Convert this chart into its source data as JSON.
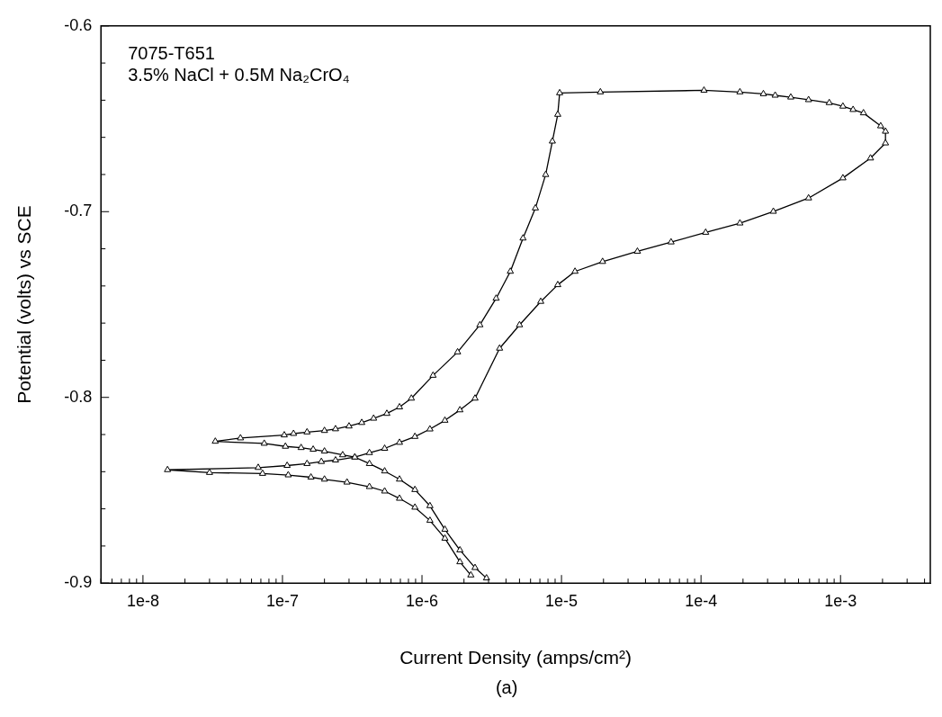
{
  "chart_data": {
    "type": "line",
    "xlabel": "Current Density (amps/cm²)",
    "ylabel": "Potential (volts) vs SCE",
    "annotations": [
      "7075-T651",
      "3.5% NaCl + 0.5M Na₂CrO₄",
      "(a)"
    ],
    "log": "x",
    "grid": false,
    "legend": false,
    "marker": "triangle",
    "line_style": "solid",
    "xlim": [
      5e-09,
      0.0044
    ],
    "ylim": [
      -0.9,
      -0.6
    ],
    "xticks": [
      {
        "value": 5e-09,
        "label": null
      },
      {
        "value": 6e-09,
        "label": null
      },
      {
        "value": 7e-09,
        "label": null
      },
      {
        "value": 8e-09,
        "label": null
      },
      {
        "value": 9e-09,
        "label": null
      },
      {
        "value": 1e-08,
        "label": "1e-8"
      },
      {
        "value": 2e-08,
        "label": null
      },
      {
        "value": 3e-08,
        "label": null
      },
      {
        "value": 4e-08,
        "label": null
      },
      {
        "value": 5e-08,
        "label": null
      },
      {
        "value": 6e-08,
        "label": null
      },
      {
        "value": 7e-08,
        "label": null
      },
      {
        "value": 8e-08,
        "label": null
      },
      {
        "value": 9e-08,
        "label": null
      },
      {
        "value": 1e-07,
        "label": "1e-7"
      },
      {
        "value": 2e-07,
        "label": null
      },
      {
        "value": 3e-07,
        "label": null
      },
      {
        "value": 4e-07,
        "label": null
      },
      {
        "value": 5e-07,
        "label": null
      },
      {
        "value": 6e-07,
        "label": null
      },
      {
        "value": 7e-07,
        "label": null
      },
      {
        "value": 8e-07,
        "label": null
      },
      {
        "value": 9e-07,
        "label": null
      },
      {
        "value": 1e-06,
        "label": "1e-6"
      },
      {
        "value": 2e-06,
        "label": null
      },
      {
        "value": 3e-06,
        "label": null
      },
      {
        "value": 4e-06,
        "label": null
      },
      {
        "value": 5e-06,
        "label": null
      },
      {
        "value": 6e-06,
        "label": null
      },
      {
        "value": 7e-06,
        "label": null
      },
      {
        "value": 8e-06,
        "label": null
      },
      {
        "value": 9e-06,
        "label": null
      },
      {
        "value": 1e-05,
        "label": "1e-5"
      },
      {
        "value": 2e-05,
        "label": null
      },
      {
        "value": 3e-05,
        "label": null
      },
      {
        "value": 4e-05,
        "label": null
      },
      {
        "value": 5e-05,
        "label": null
      },
      {
        "value": 6e-05,
        "label": null
      },
      {
        "value": 7e-05,
        "label": null
      },
      {
        "value": 8e-05,
        "label": null
      },
      {
        "value": 9e-05,
        "label": null
      },
      {
        "value": 0.0001,
        "label": "1e-4"
      },
      {
        "value": 0.0002,
        "label": null
      },
      {
        "value": 0.0003,
        "label": null
      },
      {
        "value": 0.0004,
        "label": null
      },
      {
        "value": 0.0005,
        "label": null
      },
      {
        "value": 0.0006,
        "label": null
      },
      {
        "value": 0.0007,
        "label": null
      },
      {
        "value": 0.0008,
        "label": null
      },
      {
        "value": 0.0009,
        "label": null
      },
      {
        "value": 0.001,
        "label": "1e-3"
      },
      {
        "value": 0.002,
        "label": null
      },
      {
        "value": 0.003,
        "label": null
      },
      {
        "value": 0.004,
        "label": null
      }
    ],
    "yticks": [
      -0.9,
      {
        "value": -0.88,
        "label": null
      },
      {
        "value": -0.86,
        "label": null
      },
      {
        "value": -0.84,
        "label": null
      },
      {
        "value": -0.82,
        "label": null
      },
      -0.8,
      {
        "value": -0.78,
        "label": null
      },
      {
        "value": -0.76,
        "label": null
      },
      {
        "value": -0.74,
        "label": null
      },
      {
        "value": -0.72,
        "label": null
      },
      -0.7,
      {
        "value": -0.68,
        "label": null
      },
      {
        "value": -0.66,
        "label": null
      },
      {
        "value": -0.64,
        "label": null
      },
      {
        "value": -0.62,
        "label": null
      },
      -0.6
    ],
    "series": [
      {
        "color": "#000000",
        "x": [
          2.24e-06,
          1.87e-06,
          1.46e-06,
          1.14e-06,
          8.9e-07,
          6.9e-07,
          5.4e-07,
          4.2e-07,
          2.9e-07,
          2e-07,
          1.6e-07,
          1.1e-07,
          7.2e-08,
          3e-08,
          1.5e-08,
          6.7e-08,
          1.08e-07,
          1.5e-07,
          1.9e-07,
          2.4e-07,
          3.3e-07,
          4.2e-07,
          5.4e-07,
          6.9e-07,
          8.9e-07,
          1.14e-06,
          1.46e-06,
          1.87e-06,
          2.4e-06,
          3.6e-06,
          5e-06,
          7.1e-06,
          9.4e-06,
          1.25e-05,
          1.97e-05,
          3.5e-05,
          6.1e-05,
          0.000108,
          0.00019,
          0.00033,
          0.00059,
          0.00104,
          0.00164,
          0.0021,
          0.0021,
          0.00194,
          0.00146,
          0.00123,
          0.00104,
          0.00083,
          0.00059,
          0.00044,
          0.00034,
          0.00028,
          0.00019,
          0.000105,
          1.9e-05,
          9.7e-06,
          9.4e-06,
          8.6e-06,
          7.7e-06,
          6.5e-06,
          5.3e-06,
          4.3e-06,
          3.4e-06,
          2.6e-06,
          1.8e-06,
          1.2e-06,
          8.4e-07,
          6.9e-07,
          5.6e-07,
          4.5e-07,
          3.7e-07,
          3e-07,
          2.4e-07,
          2e-07,
          1.5e-07,
          1.2e-07,
          1.03e-07,
          5e-08,
          3.3e-08,
          7.4e-08,
          1.05e-07,
          1.36e-07,
          1.66e-07,
          2e-07,
          2.7e-07,
          3.3e-07,
          4.2e-07,
          5.4e-07,
          6.9e-07,
          8.9e-07,
          1.14e-06,
          1.46e-06,
          1.87e-06,
          2.4e-06,
          2.9e-06
        ],
        "values": [
          -0.8957,
          -0.8886,
          -0.8759,
          -0.8663,
          -0.8592,
          -0.8544,
          -0.8505,
          -0.8481,
          -0.8457,
          -0.8441,
          -0.843,
          -0.8418,
          -0.841,
          -0.8405,
          -0.839,
          -0.8378,
          -0.8367,
          -0.8357,
          -0.8346,
          -0.8338,
          -0.8322,
          -0.8298,
          -0.8275,
          -0.8243,
          -0.8211,
          -0.8171,
          -0.8124,
          -0.8068,
          -0.8005,
          -0.7736,
          -0.761,
          -0.7484,
          -0.7394,
          -0.7322,
          -0.7269,
          -0.7214,
          -0.7164,
          -0.7112,
          -0.7062,
          -0.6999,
          -0.6927,
          -0.6819,
          -0.6712,
          -0.6631,
          -0.6568,
          -0.6539,
          -0.6469,
          -0.6451,
          -0.6433,
          -0.6414,
          -0.6398,
          -0.6384,
          -0.6374,
          -0.6366,
          -0.6356,
          -0.6347,
          -0.6356,
          -0.6361,
          -0.6477,
          -0.6621,
          -0.6801,
          -0.6981,
          -0.7143,
          -0.7322,
          -0.7467,
          -0.761,
          -0.7756,
          -0.7882,
          -0.8005,
          -0.8052,
          -0.8087,
          -0.8113,
          -0.8136,
          -0.8155,
          -0.817,
          -0.8179,
          -0.8187,
          -0.8195,
          -0.8203,
          -0.8219,
          -0.8237,
          -0.8248,
          -0.8264,
          -0.8271,
          -0.828,
          -0.829,
          -0.831,
          -0.8322,
          -0.8357,
          -0.8397,
          -0.8441,
          -0.8497,
          -0.8584,
          -0.8711,
          -0.8822,
          -0.8917,
          -0.8973
        ]
      }
    ]
  }
}
